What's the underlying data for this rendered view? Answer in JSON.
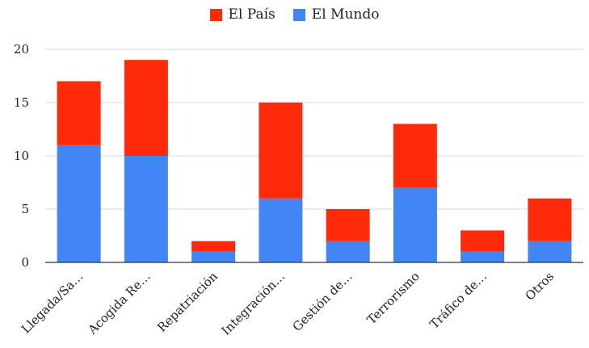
{
  "chart_data": {
    "type": "bar",
    "stacked": true,
    "categories": [
      "Llegada/Sa…",
      "Acogida Re…",
      "Repatriación",
      "Integración…",
      "Gestión de…",
      "Terrorismo",
      "Tráfico de…",
      "Otros"
    ],
    "series": [
      {
        "name": "El Mundo",
        "color": "#4285f4",
        "values": [
          11,
          10,
          1,
          6,
          2,
          7,
          1,
          2
        ]
      },
      {
        "name": "El País",
        "color": "#ff2a0a",
        "values": [
          6,
          9,
          1,
          9,
          3,
          6,
          2,
          4
        ]
      }
    ],
    "yticks": [
      0,
      5,
      10,
      15,
      20
    ],
    "ylim": [
      0,
      20
    ],
    "grid": true,
    "legend_position": "top"
  }
}
